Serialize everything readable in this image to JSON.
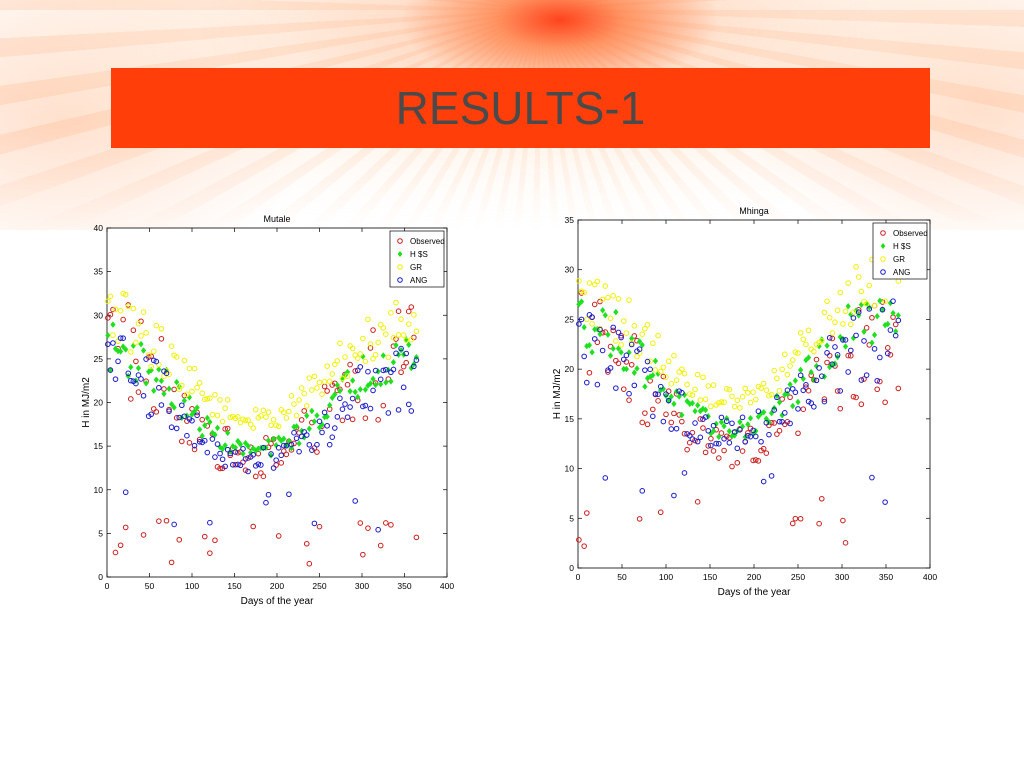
{
  "slide": {
    "title": "RESULTS-1"
  },
  "colors": {
    "title_band": "#ff3e0a",
    "title_text": "#4a4a4a",
    "observed": "#cc1f1f",
    "hs": "#1fe01f",
    "gr": "#f2f200",
    "ang": "#1a1acc"
  },
  "chart_data": [
    {
      "type": "scatter",
      "title": "Mutale",
      "xlabel": "Days of the year",
      "ylabel": "H in MJ/m2",
      "xlim": [
        0,
        400
      ],
      "ylim": [
        0,
        40
      ],
      "xticks": [
        0,
        50,
        100,
        150,
        200,
        250,
        300,
        350,
        400
      ],
      "yticks": [
        0,
        5,
        10,
        15,
        20,
        25,
        30,
        35,
        40
      ],
      "legend_position": "top-right",
      "legend": [
        "Observed",
        "H $S",
        "GR",
        "ANG"
      ],
      "series": [
        {
          "name": "Observed",
          "marker": "circle-open",
          "curve": {
            "min": 13.5,
            "peak_low": 27,
            "peak_high": 25,
            "spread": 6.5,
            "floor": 1.5
          }
        },
        {
          "name": "H $S",
          "marker": "diamond-filled",
          "curve": {
            "min": 14.5,
            "peak_low": 26.5,
            "peak_high": 25.5,
            "spread": 2.8,
            "floor": 7
          }
        },
        {
          "name": "GR",
          "marker": "circle-open",
          "curve": {
            "min": 18,
            "peak_low": 30,
            "peak_high": 29,
            "spread": 3.5,
            "floor": 10
          }
        },
        {
          "name": "ANG",
          "marker": "circle-open",
          "curve": {
            "min": 13.5,
            "peak_low": 24.5,
            "peak_high": 22,
            "spread": 4.5,
            "floor": 5
          }
        }
      ]
    },
    {
      "type": "scatter",
      "title": "Mhinga",
      "xlabel": "Days of the year",
      "ylabel": "H in MJ/m2",
      "xlim": [
        0,
        400
      ],
      "ylim": [
        0,
        35
      ],
      "xticks": [
        0,
        50,
        100,
        150,
        200,
        250,
        300,
        350,
        400
      ],
      "yticks": [
        0,
        5,
        10,
        15,
        20,
        25,
        30,
        35
      ],
      "legend_position": "top-right",
      "legend": [
        "Observed",
        "H $S",
        "GR",
        "ANG"
      ],
      "series": [
        {
          "name": "Observed",
          "marker": "circle-open",
          "curve": {
            "min": 12,
            "peak_low": 23,
            "peak_high": 22,
            "spread": 5.5,
            "floor": 2
          }
        },
        {
          "name": "H $S",
          "marker": "diamond-filled",
          "curve": {
            "min": 14,
            "peak_low": 25,
            "peak_high": 26,
            "spread": 3,
            "floor": 7
          }
        },
        {
          "name": "GR",
          "marker": "circle-open",
          "curve": {
            "min": 17,
            "peak_low": 27,
            "peak_high": 30,
            "spread": 3.5,
            "floor": 9
          }
        },
        {
          "name": "ANG",
          "marker": "circle-open",
          "curve": {
            "min": 13.5,
            "peak_low": 22,
            "peak_high": 23,
            "spread": 4.5,
            "floor": 5
          }
        }
      ]
    }
  ]
}
